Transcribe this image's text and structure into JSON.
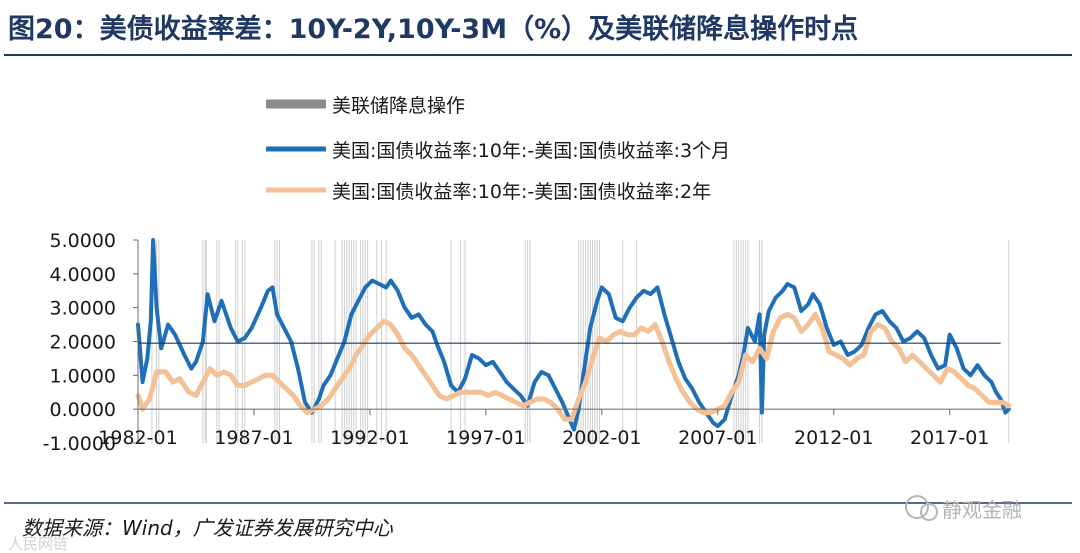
{
  "figure": {
    "title": "图20：美债收益率差：10Y-2Y,10Y-3M（%）及美联储降息操作时点",
    "source": "数据来源：Wind，广发证券发展研究中心",
    "watermark": "静观金融",
    "watermark_bottom": "人民网链"
  },
  "chart_data": {
    "type": "line",
    "title": "美债收益率差：10Y-2Y,10Y-3M（%）及美联储降息操作时点",
    "xlabel": "",
    "ylabel": "",
    "ylim": [
      -1.0,
      5.0
    ],
    "xlim": [
      1982.0,
      2019.6
    ],
    "yticks": [
      "5.0000",
      "4.0000",
      "3.0000",
      "2.0000",
      "1.0000",
      "0.0000",
      "-1.0000"
    ],
    "ytick_values": [
      5,
      4,
      3,
      2,
      1,
      0,
      -1
    ],
    "xticks": [
      "1982-01",
      "1987-01",
      "1992-01",
      "1997-01",
      "2002-01",
      "2007-01",
      "2012-01",
      "2017-01"
    ],
    "xtick_values": [
      1982.0,
      1987.0,
      1992.0,
      1997.0,
      2002.0,
      2007.0,
      2012.0,
      2017.0
    ],
    "reference_line": {
      "value": 1.95,
      "x_end": 2019.2
    },
    "grid": false,
    "legend_position": "top-left",
    "legend": [
      "美联储降息操作",
      "美国:国债收益率:10年:-美国:国债收益率:3个月",
      "美国:国债收益率:10年:-美国:国债收益率:2年"
    ],
    "rate_cut_dates": [
      1982.6,
      1982.8,
      1982.9,
      1984.8,
      1984.9,
      1984.95,
      1985.4,
      1985.5,
      1986.2,
      1986.3,
      1986.5,
      1986.6,
      1987.9,
      1988.0,
      1988.1,
      1989.5,
      1989.6,
      1989.8,
      1989.9,
      1990.5,
      1990.8,
      1990.9,
      1991.0,
      1991.1,
      1991.2,
      1991.3,
      1991.4,
      1991.6,
      1991.7,
      1991.8,
      1991.9,
      1992.3,
      1992.5,
      1992.7,
      1995.5,
      1995.9,
      1996.1,
      1998.7,
      1998.8,
      1998.9,
      2001.0,
      2001.1,
      2001.2,
      2001.3,
      2001.4,
      2001.5,
      2001.6,
      2001.7,
      2001.8,
      2001.9,
      2002.9,
      2003.5,
      2007.7,
      2007.8,
      2007.9,
      2008.0,
      2008.1,
      2008.2,
      2008.3,
      2008.8,
      2008.9,
      2019.55
    ],
    "series": [
      {
        "name": "美国:国债收益率:10年:-美国:国债收益率:3个月",
        "color": "#1f6fb8",
        "points": [
          [
            1982.0,
            2.5
          ],
          [
            1982.2,
            0.8
          ],
          [
            1982.4,
            1.5
          ],
          [
            1982.55,
            2.6
          ],
          [
            1982.65,
            5.0
          ],
          [
            1982.8,
            3.0
          ],
          [
            1983.0,
            1.8
          ],
          [
            1983.3,
            2.5
          ],
          [
            1983.6,
            2.2
          ],
          [
            1984.0,
            1.6
          ],
          [
            1984.3,
            1.2
          ],
          [
            1984.5,
            1.4
          ],
          [
            1984.8,
            2.0
          ],
          [
            1985.0,
            3.4
          ],
          [
            1985.3,
            2.6
          ],
          [
            1985.6,
            3.2
          ],
          [
            1986.0,
            2.4
          ],
          [
            1986.3,
            2.0
          ],
          [
            1986.6,
            2.1
          ],
          [
            1986.9,
            2.4
          ],
          [
            1987.3,
            3.0
          ],
          [
            1987.6,
            3.5
          ],
          [
            1987.8,
            3.6
          ],
          [
            1988.0,
            2.8
          ],
          [
            1988.3,
            2.4
          ],
          [
            1988.6,
            2.0
          ],
          [
            1988.9,
            1.2
          ],
          [
            1989.2,
            0.2
          ],
          [
            1989.5,
            -0.1
          ],
          [
            1989.8,
            0.3
          ],
          [
            1990.0,
            0.7
          ],
          [
            1990.3,
            1.0
          ],
          [
            1990.6,
            1.5
          ],
          [
            1990.9,
            2.0
          ],
          [
            1991.2,
            2.8
          ],
          [
            1991.5,
            3.2
          ],
          [
            1991.8,
            3.6
          ],
          [
            1992.1,
            3.8
          ],
          [
            1992.4,
            3.7
          ],
          [
            1992.7,
            3.6
          ],
          [
            1992.9,
            3.8
          ],
          [
            1993.2,
            3.5
          ],
          [
            1993.5,
            3.0
          ],
          [
            1993.8,
            2.7
          ],
          [
            1994.1,
            2.8
          ],
          [
            1994.4,
            2.5
          ],
          [
            1994.7,
            2.3
          ],
          [
            1994.9,
            1.9
          ],
          [
            1995.2,
            1.4
          ],
          [
            1995.5,
            0.7
          ],
          [
            1995.8,
            0.5
          ],
          [
            1996.1,
            0.9
          ],
          [
            1996.4,
            1.6
          ],
          [
            1996.7,
            1.5
          ],
          [
            1997.0,
            1.3
          ],
          [
            1997.3,
            1.4
          ],
          [
            1997.6,
            1.1
          ],
          [
            1997.9,
            0.8
          ],
          [
            1998.2,
            0.6
          ],
          [
            1998.5,
            0.4
          ],
          [
            1998.8,
            0.1
          ],
          [
            1999.1,
            0.8
          ],
          [
            1999.4,
            1.1
          ],
          [
            1999.7,
            1.0
          ],
          [
            2000.0,
            0.6
          ],
          [
            2000.3,
            0.2
          ],
          [
            2000.6,
            -0.3
          ],
          [
            2000.8,
            -0.6
          ],
          [
            2001.0,
            0.0
          ],
          [
            2001.2,
            1.0
          ],
          [
            2001.5,
            2.4
          ],
          [
            2001.8,
            3.2
          ],
          [
            2002.0,
            3.6
          ],
          [
            2002.3,
            3.4
          ],
          [
            2002.6,
            2.7
          ],
          [
            2002.9,
            2.6
          ],
          [
            2003.2,
            3.0
          ],
          [
            2003.5,
            3.3
          ],
          [
            2003.8,
            3.5
          ],
          [
            2004.1,
            3.4
          ],
          [
            2004.4,
            3.6
          ],
          [
            2004.7,
            2.8
          ],
          [
            2005.0,
            2.1
          ],
          [
            2005.3,
            1.4
          ],
          [
            2005.6,
            0.9
          ],
          [
            2005.9,
            0.6
          ],
          [
            2006.2,
            0.2
          ],
          [
            2006.5,
            -0.1
          ],
          [
            2006.8,
            -0.4
          ],
          [
            2007.0,
            -0.5
          ],
          [
            2007.3,
            -0.3
          ],
          [
            2007.6,
            0.4
          ],
          [
            2007.9,
            1.0
          ],
          [
            2008.1,
            1.6
          ],
          [
            2008.3,
            2.4
          ],
          [
            2008.6,
            2.0
          ],
          [
            2008.8,
            2.8
          ],
          [
            2008.9,
            -0.1
          ],
          [
            2009.0,
            2.2
          ],
          [
            2009.2,
            2.9
          ],
          [
            2009.5,
            3.3
          ],
          [
            2009.8,
            3.5
          ],
          [
            2010.0,
            3.7
          ],
          [
            2010.3,
            3.6
          ],
          [
            2010.6,
            2.9
          ],
          [
            2010.9,
            3.1
          ],
          [
            2011.1,
            3.4
          ],
          [
            2011.4,
            3.1
          ],
          [
            2011.7,
            2.4
          ],
          [
            2012.0,
            1.9
          ],
          [
            2012.3,
            2.0
          ],
          [
            2012.6,
            1.6
          ],
          [
            2012.9,
            1.7
          ],
          [
            2013.2,
            1.9
          ],
          [
            2013.5,
            2.4
          ],
          [
            2013.8,
            2.8
          ],
          [
            2014.1,
            2.9
          ],
          [
            2014.4,
            2.6
          ],
          [
            2014.7,
            2.4
          ],
          [
            2015.0,
            2.0
          ],
          [
            2015.3,
            2.1
          ],
          [
            2015.6,
            2.3
          ],
          [
            2015.9,
            2.1
          ],
          [
            2016.2,
            1.6
          ],
          [
            2016.5,
            1.2
          ],
          [
            2016.8,
            1.3
          ],
          [
            2017.0,
            2.2
          ],
          [
            2017.3,
            1.8
          ],
          [
            2017.6,
            1.2
          ],
          [
            2017.9,
            1.0
          ],
          [
            2018.2,
            1.3
          ],
          [
            2018.5,
            1.0
          ],
          [
            2018.8,
            0.8
          ],
          [
            2019.0,
            0.5
          ],
          [
            2019.2,
            0.3
          ],
          [
            2019.4,
            -0.1
          ],
          [
            2019.55,
            0.0
          ]
        ]
      },
      {
        "name": "美国:国债收益率:10年:-美国:国债收益率:2年",
        "color": "#f4c095",
        "points": [
          [
            1982.0,
            0.4
          ],
          [
            1982.2,
            0.0
          ],
          [
            1982.5,
            0.3
          ],
          [
            1982.8,
            1.1
          ],
          [
            1983.2,
            1.1
          ],
          [
            1983.5,
            0.8
          ],
          [
            1983.8,
            0.9
          ],
          [
            1984.2,
            0.5
          ],
          [
            1984.5,
            0.4
          ],
          [
            1984.8,
            0.8
          ],
          [
            1985.1,
            1.2
          ],
          [
            1985.4,
            1.0
          ],
          [
            1985.7,
            1.1
          ],
          [
            1986.0,
            1.0
          ],
          [
            1986.3,
            0.7
          ],
          [
            1986.6,
            0.7
          ],
          [
            1986.9,
            0.8
          ],
          [
            1987.2,
            0.9
          ],
          [
            1987.5,
            1.0
          ],
          [
            1987.8,
            1.0
          ],
          [
            1988.1,
            0.8
          ],
          [
            1988.4,
            0.6
          ],
          [
            1988.7,
            0.4
          ],
          [
            1989.0,
            0.1
          ],
          [
            1989.3,
            -0.1
          ],
          [
            1989.6,
            0.0
          ],
          [
            1989.9,
            0.1
          ],
          [
            1990.2,
            0.3
          ],
          [
            1990.5,
            0.6
          ],
          [
            1990.8,
            0.9
          ],
          [
            1991.1,
            1.2
          ],
          [
            1991.4,
            1.6
          ],
          [
            1991.7,
            1.9
          ],
          [
            1992.0,
            2.2
          ],
          [
            1992.3,
            2.4
          ],
          [
            1992.6,
            2.6
          ],
          [
            1992.9,
            2.5
          ],
          [
            1993.2,
            2.2
          ],
          [
            1993.5,
            1.8
          ],
          [
            1993.8,
            1.6
          ],
          [
            1994.1,
            1.3
          ],
          [
            1994.4,
            1.0
          ],
          [
            1994.7,
            0.7
          ],
          [
            1995.0,
            0.4
          ],
          [
            1995.3,
            0.3
          ],
          [
            1995.6,
            0.4
          ],
          [
            1995.9,
            0.5
          ],
          [
            1996.2,
            0.5
          ],
          [
            1996.5,
            0.5
          ],
          [
            1996.8,
            0.5
          ],
          [
            1997.1,
            0.4
          ],
          [
            1997.4,
            0.5
          ],
          [
            1997.7,
            0.4
          ],
          [
            1998.0,
            0.3
          ],
          [
            1998.3,
            0.2
          ],
          [
            1998.6,
            0.1
          ],
          [
            1998.9,
            0.2
          ],
          [
            1999.2,
            0.3
          ],
          [
            1999.5,
            0.3
          ],
          [
            1999.8,
            0.2
          ],
          [
            2000.1,
            0.0
          ],
          [
            2000.4,
            -0.3
          ],
          [
            2000.7,
            -0.3
          ],
          [
            2001.0,
            0.3
          ],
          [
            2001.3,
            0.8
          ],
          [
            2001.6,
            1.5
          ],
          [
            2001.9,
            2.1
          ],
          [
            2002.2,
            2.0
          ],
          [
            2002.5,
            2.2
          ],
          [
            2002.8,
            2.3
          ],
          [
            2003.1,
            2.2
          ],
          [
            2003.4,
            2.2
          ],
          [
            2003.7,
            2.4
          ],
          [
            2004.0,
            2.3
          ],
          [
            2004.3,
            2.5
          ],
          [
            2004.6,
            2.0
          ],
          [
            2004.9,
            1.4
          ],
          [
            2005.2,
            0.9
          ],
          [
            2005.5,
            0.5
          ],
          [
            2005.8,
            0.2
          ],
          [
            2006.1,
            0.0
          ],
          [
            2006.4,
            -0.1
          ],
          [
            2006.7,
            -0.1
          ],
          [
            2007.0,
            0.0
          ],
          [
            2007.3,
            0.1
          ],
          [
            2007.6,
            0.5
          ],
          [
            2007.9,
            0.8
          ],
          [
            2008.2,
            1.6
          ],
          [
            2008.5,
            1.4
          ],
          [
            2008.8,
            1.8
          ],
          [
            2009.1,
            1.5
          ],
          [
            2009.4,
            2.3
          ],
          [
            2009.7,
            2.7
          ],
          [
            2010.0,
            2.8
          ],
          [
            2010.3,
            2.7
          ],
          [
            2010.6,
            2.3
          ],
          [
            2010.9,
            2.5
          ],
          [
            2011.2,
            2.8
          ],
          [
            2011.5,
            2.4
          ],
          [
            2011.8,
            1.7
          ],
          [
            2012.1,
            1.6
          ],
          [
            2012.4,
            1.5
          ],
          [
            2012.7,
            1.3
          ],
          [
            2013.0,
            1.5
          ],
          [
            2013.3,
            1.6
          ],
          [
            2013.6,
            2.3
          ],
          [
            2013.9,
            2.5
          ],
          [
            2014.2,
            2.4
          ],
          [
            2014.5,
            2.0
          ],
          [
            2014.8,
            1.8
          ],
          [
            2015.1,
            1.4
          ],
          [
            2015.4,
            1.6
          ],
          [
            2015.7,
            1.4
          ],
          [
            2016.0,
            1.2
          ],
          [
            2016.3,
            1.0
          ],
          [
            2016.6,
            0.8
          ],
          [
            2016.9,
            1.2
          ],
          [
            2017.2,
            1.1
          ],
          [
            2017.5,
            0.9
          ],
          [
            2017.8,
            0.7
          ],
          [
            2018.1,
            0.6
          ],
          [
            2018.4,
            0.4
          ],
          [
            2018.7,
            0.2
          ],
          [
            2019.0,
            0.2
          ],
          [
            2019.3,
            0.2
          ],
          [
            2019.55,
            0.1
          ]
        ]
      }
    ]
  }
}
